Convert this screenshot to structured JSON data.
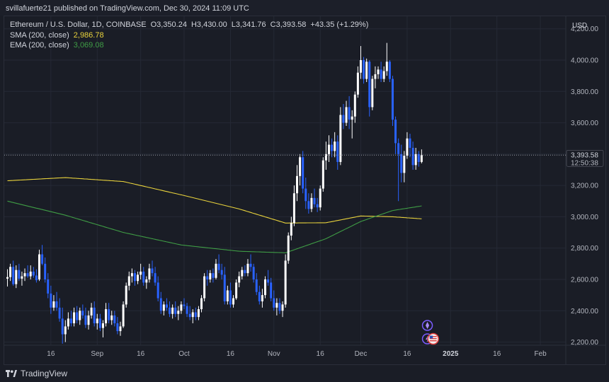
{
  "publisher": "svillafuerte21 published on TradingView.com, Dec 30, 2024 11:09 UTC",
  "legend": {
    "symbol": "Ethereum / U.S. Dollar, 1D, COINBASE",
    "open": "O3,350.24",
    "high": "H3,430.00",
    "low": "L3,341.76",
    "close": "C3,393.58",
    "change": "+43.35 (+1.29%)",
    "sma_label": "SMA (200, close)",
    "sma_value": "2,986.78",
    "ema_label": "EMA (200, close)",
    "ema_value": "3,069.08"
  },
  "price_axis": {
    "currency": "USD"
  },
  "last_price_tag": {
    "price": "3,393.58",
    "countdown": "12:50:38"
  },
  "footer": {
    "brand": "TradingView"
  },
  "colors": {
    "background": "#1a1d26",
    "grid": "#252935",
    "up_candle": "#ffffff",
    "down_candle": "#2962ff",
    "sma": "#e8d23c",
    "ema": "#3f9c45",
    "text": "#d1d4dc"
  },
  "icons": [
    "rocket-event-icon",
    "lightning-event-icon",
    "us-flag-event-icon",
    "tradingview-logo-icon"
  ],
  "chart_data": {
    "type": "candlestick",
    "title": "Ethereum / U.S. Dollar, 1D, COINBASE",
    "ylabel": "USD",
    "ylim": [
      2180,
      4280
    ],
    "yticks": [
      2200,
      2400,
      2600,
      2800,
      3000,
      3200,
      3400,
      3600,
      3800,
      4000,
      4200
    ],
    "ytick_labels": [
      "2,200.00",
      "2,400.00",
      "2,600.00",
      "2,800.00",
      "3,000.00",
      "3,200.00",
      "3,400.00",
      "3,600.00",
      "3,800.00",
      "4,000.00",
      "4,200.00"
    ],
    "xtick_labels": [
      "16",
      "Sep",
      "16",
      "Oct",
      "16",
      "Nov",
      "16",
      "Dec",
      "16",
      "2025",
      "16",
      "Feb"
    ],
    "xtick_days": [
      15,
      31,
      46,
      61,
      77,
      92,
      108,
      122,
      138,
      153,
      169,
      184
    ],
    "grid": true,
    "candles": [
      {
        "d": 0,
        "o": 2605,
        "h": 2665,
        "l": 2555,
        "c": 2615
      },
      {
        "d": 1,
        "o": 2615,
        "h": 2700,
        "l": 2590,
        "c": 2680
      },
      {
        "d": 2,
        "o": 2680,
        "h": 2720,
        "l": 2560,
        "c": 2570
      },
      {
        "d": 3,
        "o": 2570,
        "h": 2690,
        "l": 2545,
        "c": 2660
      },
      {
        "d": 4,
        "o": 2660,
        "h": 2700,
        "l": 2590,
        "c": 2605
      },
      {
        "d": 5,
        "o": 2605,
        "h": 2650,
        "l": 2560,
        "c": 2620
      },
      {
        "d": 6,
        "o": 2620,
        "h": 2670,
        "l": 2590,
        "c": 2640
      },
      {
        "d": 7,
        "o": 2640,
        "h": 2690,
        "l": 2610,
        "c": 2620
      },
      {
        "d": 8,
        "o": 2620,
        "h": 2690,
        "l": 2600,
        "c": 2650
      },
      {
        "d": 9,
        "o": 2650,
        "h": 2680,
        "l": 2610,
        "c": 2625
      },
      {
        "d": 10,
        "o": 2625,
        "h": 2665,
        "l": 2580,
        "c": 2595
      },
      {
        "d": 11,
        "o": 2600,
        "h": 2790,
        "l": 2590,
        "c": 2760
      },
      {
        "d": 12,
        "o": 2760,
        "h": 2820,
        "l": 2690,
        "c": 2700
      },
      {
        "d": 13,
        "o": 2700,
        "h": 2740,
        "l": 2580,
        "c": 2600
      },
      {
        "d": 14,
        "o": 2600,
        "h": 2640,
        "l": 2480,
        "c": 2510
      },
      {
        "d": 15,
        "o": 2510,
        "h": 2560,
        "l": 2380,
        "c": 2420
      },
      {
        "d": 16,
        "o": 2420,
        "h": 2500,
        "l": 2400,
        "c": 2460
      },
      {
        "d": 17,
        "o": 2460,
        "h": 2520,
        "l": 2400,
        "c": 2420
      },
      {
        "d": 18,
        "o": 2420,
        "h": 2480,
        "l": 2330,
        "c": 2350
      },
      {
        "d": 19,
        "o": 2350,
        "h": 2420,
        "l": 2190,
        "c": 2250
      },
      {
        "d": 20,
        "o": 2250,
        "h": 2340,
        "l": 2200,
        "c": 2300
      },
      {
        "d": 21,
        "o": 2300,
        "h": 2390,
        "l": 2280,
        "c": 2350
      },
      {
        "d": 22,
        "o": 2350,
        "h": 2400,
        "l": 2300,
        "c": 2320
      },
      {
        "d": 23,
        "o": 2320,
        "h": 2420,
        "l": 2300,
        "c": 2390
      },
      {
        "d": 24,
        "o": 2390,
        "h": 2430,
        "l": 2320,
        "c": 2340
      },
      {
        "d": 25,
        "o": 2340,
        "h": 2420,
        "l": 2310,
        "c": 2400
      },
      {
        "d": 26,
        "o": 2400,
        "h": 2440,
        "l": 2350,
        "c": 2370
      },
      {
        "d": 27,
        "o": 2370,
        "h": 2420,
        "l": 2290,
        "c": 2310
      },
      {
        "d": 28,
        "o": 2310,
        "h": 2400,
        "l": 2280,
        "c": 2370
      },
      {
        "d": 29,
        "o": 2370,
        "h": 2450,
        "l": 2350,
        "c": 2420
      },
      {
        "d": 30,
        "o": 2420,
        "h": 2460,
        "l": 2300,
        "c": 2320
      },
      {
        "d": 31,
        "o": 2320,
        "h": 2380,
        "l": 2280,
        "c": 2350
      },
      {
        "d": 32,
        "o": 2350,
        "h": 2380,
        "l": 2270,
        "c": 2290
      },
      {
        "d": 33,
        "o": 2290,
        "h": 2340,
        "l": 2230,
        "c": 2320
      },
      {
        "d": 34,
        "o": 2320,
        "h": 2450,
        "l": 2300,
        "c": 2410
      },
      {
        "d": 35,
        "o": 2410,
        "h": 2450,
        "l": 2320,
        "c": 2340
      },
      {
        "d": 36,
        "o": 2340,
        "h": 2400,
        "l": 2310,
        "c": 2370
      },
      {
        "d": 37,
        "o": 2370,
        "h": 2400,
        "l": 2300,
        "c": 2320
      },
      {
        "d": 38,
        "o": 2320,
        "h": 2360,
        "l": 2250,
        "c": 2270
      },
      {
        "d": 39,
        "o": 2270,
        "h": 2330,
        "l": 2240,
        "c": 2300
      },
      {
        "d": 40,
        "o": 2300,
        "h": 2460,
        "l": 2290,
        "c": 2440
      },
      {
        "d": 41,
        "o": 2440,
        "h": 2580,
        "l": 2420,
        "c": 2560
      },
      {
        "d": 42,
        "o": 2560,
        "h": 2650,
        "l": 2530,
        "c": 2620
      },
      {
        "d": 43,
        "o": 2620,
        "h": 2670,
        "l": 2580,
        "c": 2640
      },
      {
        "d": 44,
        "o": 2640,
        "h": 2660,
        "l": 2560,
        "c": 2590
      },
      {
        "d": 45,
        "o": 2590,
        "h": 2650,
        "l": 2570,
        "c": 2630
      },
      {
        "d": 46,
        "o": 2630,
        "h": 2700,
        "l": 2600,
        "c": 2650
      },
      {
        "d": 47,
        "o": 2650,
        "h": 2680,
        "l": 2560,
        "c": 2580
      },
      {
        "d": 48,
        "o": 2580,
        "h": 2620,
        "l": 2540,
        "c": 2600
      },
      {
        "d": 49,
        "o": 2600,
        "h": 2700,
        "l": 2580,
        "c": 2670
      },
      {
        "d": 50,
        "o": 2670,
        "h": 2720,
        "l": 2620,
        "c": 2640
      },
      {
        "d": 51,
        "o": 2640,
        "h": 2680,
        "l": 2560,
        "c": 2580
      },
      {
        "d": 52,
        "o": 2580,
        "h": 2620,
        "l": 2460,
        "c": 2480
      },
      {
        "d": 53,
        "o": 2480,
        "h": 2520,
        "l": 2380,
        "c": 2400
      },
      {
        "d": 54,
        "o": 2400,
        "h": 2460,
        "l": 2370,
        "c": 2440
      },
      {
        "d": 55,
        "o": 2440,
        "h": 2480,
        "l": 2400,
        "c": 2420
      },
      {
        "d": 56,
        "o": 2420,
        "h": 2460,
        "l": 2360,
        "c": 2380
      },
      {
        "d": 57,
        "o": 2380,
        "h": 2440,
        "l": 2350,
        "c": 2420
      },
      {
        "d": 58,
        "o": 2420,
        "h": 2460,
        "l": 2360,
        "c": 2380
      },
      {
        "d": 59,
        "o": 2380,
        "h": 2430,
        "l": 2340,
        "c": 2400
      },
      {
        "d": 60,
        "o": 2400,
        "h": 2460,
        "l": 2380,
        "c": 2440
      },
      {
        "d": 61,
        "o": 2440,
        "h": 2480,
        "l": 2410,
        "c": 2430
      },
      {
        "d": 62,
        "o": 2430,
        "h": 2450,
        "l": 2360,
        "c": 2380
      },
      {
        "d": 63,
        "o": 2380,
        "h": 2430,
        "l": 2340,
        "c": 2360
      },
      {
        "d": 64,
        "o": 2360,
        "h": 2410,
        "l": 2320,
        "c": 2390
      },
      {
        "d": 65,
        "o": 2390,
        "h": 2420,
        "l": 2340,
        "c": 2360
      },
      {
        "d": 66,
        "o": 2360,
        "h": 2430,
        "l": 2340,
        "c": 2410
      },
      {
        "d": 67,
        "o": 2410,
        "h": 2500,
        "l": 2390,
        "c": 2480
      },
      {
        "d": 68,
        "o": 2480,
        "h": 2640,
        "l": 2460,
        "c": 2620
      },
      {
        "d": 69,
        "o": 2620,
        "h": 2660,
        "l": 2560,
        "c": 2600
      },
      {
        "d": 70,
        "o": 2600,
        "h": 2660,
        "l": 2580,
        "c": 2640
      },
      {
        "d": 71,
        "o": 2640,
        "h": 2670,
        "l": 2580,
        "c": 2610
      },
      {
        "d": 72,
        "o": 2610,
        "h": 2730,
        "l": 2600,
        "c": 2700
      },
      {
        "d": 73,
        "o": 2700,
        "h": 2760,
        "l": 2640,
        "c": 2660
      },
      {
        "d": 74,
        "o": 2660,
        "h": 2700,
        "l": 2600,
        "c": 2630
      },
      {
        "d": 75,
        "o": 2630,
        "h": 2680,
        "l": 2440,
        "c": 2460
      },
      {
        "d": 76,
        "o": 2460,
        "h": 2560,
        "l": 2440,
        "c": 2530
      },
      {
        "d": 77,
        "o": 2530,
        "h": 2580,
        "l": 2420,
        "c": 2440
      },
      {
        "d": 78,
        "o": 2440,
        "h": 2500,
        "l": 2420,
        "c": 2480
      },
      {
        "d": 79,
        "o": 2480,
        "h": 2600,
        "l": 2470,
        "c": 2580
      },
      {
        "d": 80,
        "o": 2580,
        "h": 2650,
        "l": 2550,
        "c": 2620
      },
      {
        "d": 81,
        "o": 2620,
        "h": 2680,
        "l": 2600,
        "c": 2660
      },
      {
        "d": 82,
        "o": 2660,
        "h": 2690,
        "l": 2620,
        "c": 2640
      },
      {
        "d": 83,
        "o": 2640,
        "h": 2730,
        "l": 2620,
        "c": 2700
      },
      {
        "d": 84,
        "o": 2700,
        "h": 2760,
        "l": 2650,
        "c": 2680
      },
      {
        "d": 85,
        "o": 2680,
        "h": 2700,
        "l": 2580,
        "c": 2600
      },
      {
        "d": 86,
        "o": 2600,
        "h": 2640,
        "l": 2500,
        "c": 2520
      },
      {
        "d": 87,
        "o": 2520,
        "h": 2560,
        "l": 2440,
        "c": 2460
      },
      {
        "d": 88,
        "o": 2460,
        "h": 2540,
        "l": 2420,
        "c": 2500
      },
      {
        "d": 89,
        "o": 2500,
        "h": 2620,
        "l": 2480,
        "c": 2600
      },
      {
        "d": 90,
        "o": 2600,
        "h": 2660,
        "l": 2560,
        "c": 2580
      },
      {
        "d": 91,
        "o": 2580,
        "h": 2610,
        "l": 2460,
        "c": 2480
      },
      {
        "d": 92,
        "o": 2480,
        "h": 2530,
        "l": 2400,
        "c": 2420
      },
      {
        "d": 93,
        "o": 2420,
        "h": 2480,
        "l": 2370,
        "c": 2450
      },
      {
        "d": 94,
        "o": 2450,
        "h": 2480,
        "l": 2380,
        "c": 2400
      },
      {
        "d": 95,
        "o": 2400,
        "h": 2460,
        "l": 2360,
        "c": 2440
      },
      {
        "d": 96,
        "o": 2440,
        "h": 2760,
        "l": 2420,
        "c": 2720
      },
      {
        "d": 97,
        "o": 2720,
        "h": 2900,
        "l": 2700,
        "c": 2880
      },
      {
        "d": 98,
        "o": 2880,
        "h": 3000,
        "l": 2850,
        "c": 2960
      },
      {
        "d": 99,
        "o": 2960,
        "h": 3200,
        "l": 2940,
        "c": 3150
      },
      {
        "d": 100,
        "o": 3150,
        "h": 3330,
        "l": 3100,
        "c": 3260
      },
      {
        "d": 101,
        "o": 3260,
        "h": 3400,
        "l": 3200,
        "c": 3380
      },
      {
        "d": 102,
        "o": 3380,
        "h": 3420,
        "l": 3150,
        "c": 3180
      },
      {
        "d": 103,
        "o": 3180,
        "h": 3250,
        "l": 3050,
        "c": 3100
      },
      {
        "d": 104,
        "o": 3100,
        "h": 3150,
        "l": 3020,
        "c": 3050
      },
      {
        "d": 105,
        "o": 3050,
        "h": 3150,
        "l": 3030,
        "c": 3120
      },
      {
        "d": 106,
        "o": 3120,
        "h": 3180,
        "l": 3060,
        "c": 3080
      },
      {
        "d": 107,
        "o": 3080,
        "h": 3120,
        "l": 3030,
        "c": 3060
      },
      {
        "d": 108,
        "o": 3060,
        "h": 3200,
        "l": 3040,
        "c": 3180
      },
      {
        "d": 109,
        "o": 3180,
        "h": 3380,
        "l": 3160,
        "c": 3360
      },
      {
        "d": 110,
        "o": 3360,
        "h": 3480,
        "l": 3300,
        "c": 3400
      },
      {
        "d": 111,
        "o": 3400,
        "h": 3520,
        "l": 3350,
        "c": 3460
      },
      {
        "d": 112,
        "o": 3460,
        "h": 3500,
        "l": 3380,
        "c": 3420
      },
      {
        "d": 113,
        "o": 3420,
        "h": 3540,
        "l": 3380,
        "c": 3480
      },
      {
        "d": 114,
        "o": 3480,
        "h": 3520,
        "l": 3300,
        "c": 3350
      },
      {
        "d": 115,
        "o": 3350,
        "h": 3700,
        "l": 3330,
        "c": 3650
      },
      {
        "d": 116,
        "o": 3650,
        "h": 3720,
        "l": 3560,
        "c": 3600
      },
      {
        "d": 117,
        "o": 3600,
        "h": 3740,
        "l": 3580,
        "c": 3700
      },
      {
        "d": 118,
        "o": 3700,
        "h": 3770,
        "l": 3560,
        "c": 3620
      },
      {
        "d": 119,
        "o": 3620,
        "h": 3680,
        "l": 3500,
        "c": 3640
      },
      {
        "d": 120,
        "o": 3640,
        "h": 3800,
        "l": 3600,
        "c": 3780
      },
      {
        "d": 121,
        "o": 3780,
        "h": 3960,
        "l": 3760,
        "c": 3920
      },
      {
        "d": 122,
        "o": 3920,
        "h": 4090,
        "l": 3880,
        "c": 4000
      },
      {
        "d": 123,
        "o": 4000,
        "h": 4020,
        "l": 3850,
        "c": 3880
      },
      {
        "d": 124,
        "o": 3880,
        "h": 4010,
        "l": 3860,
        "c": 3990
      },
      {
        "d": 125,
        "o": 3990,
        "h": 4000,
        "l": 3640,
        "c": 3700
      },
      {
        "d": 126,
        "o": 3700,
        "h": 3900,
        "l": 3680,
        "c": 3880
      },
      {
        "d": 127,
        "o": 3880,
        "h": 3960,
        "l": 3820,
        "c": 3910
      },
      {
        "d": 128,
        "o": 3910,
        "h": 3960,
        "l": 3880,
        "c": 3940
      },
      {
        "d": 129,
        "o": 3940,
        "h": 3990,
        "l": 3860,
        "c": 3880
      },
      {
        "d": 130,
        "o": 3880,
        "h": 3960,
        "l": 3860,
        "c": 3930
      },
      {
        "d": 131,
        "o": 3930,
        "h": 4110,
        "l": 3900,
        "c": 3990
      },
      {
        "d": 132,
        "o": 3990,
        "h": 4000,
        "l": 3860,
        "c": 3880
      },
      {
        "d": 133,
        "o": 3880,
        "h": 3900,
        "l": 3580,
        "c": 3620
      },
      {
        "d": 134,
        "o": 3620,
        "h": 3640,
        "l": 3400,
        "c": 3470
      },
      {
        "d": 135,
        "o": 3470,
        "h": 3500,
        "l": 3100,
        "c": 3400
      },
      {
        "d": 136,
        "o": 3400,
        "h": 3460,
        "l": 3220,
        "c": 3280
      },
      {
        "d": 137,
        "o": 3280,
        "h": 3420,
        "l": 3220,
        "c": 3390
      },
      {
        "d": 138,
        "o": 3390,
        "h": 3540,
        "l": 3370,
        "c": 3500
      },
      {
        "d": 139,
        "o": 3500,
        "h": 3530,
        "l": 3380,
        "c": 3440
      },
      {
        "d": 140,
        "o": 3440,
        "h": 3480,
        "l": 3300,
        "c": 3330
      },
      {
        "d": 141,
        "o": 3330,
        "h": 3440,
        "l": 3300,
        "c": 3400
      },
      {
        "d": 142,
        "o": 3400,
        "h": 3420,
        "l": 3320,
        "c": 3350
      },
      {
        "d": 143,
        "o": 3350,
        "h": 3430,
        "l": 3341,
        "c": 3393
      }
    ],
    "series": [
      {
        "name": "SMA (200, close)",
        "x": [
          0,
          20,
          40,
          60,
          80,
          96,
          110,
          122,
          133,
          143
        ],
        "values": [
          3230,
          3250,
          3225,
          3140,
          3050,
          2960,
          2962,
          3005,
          3000,
          2987
        ]
      },
      {
        "name": "EMA (200, close)",
        "x": [
          0,
          20,
          40,
          60,
          80,
          96,
          110,
          122,
          133,
          143
        ],
        "values": [
          3100,
          3010,
          2900,
          2820,
          2780,
          2770,
          2860,
          2970,
          3040,
          3069
        ]
      }
    ],
    "last_price": 3393.58,
    "events": [
      {
        "d": 145,
        "icon": "rocket-event-icon"
      },
      {
        "d": 145,
        "icon": "lightning-event-icon"
      },
      {
        "d": 147,
        "icon": "us-flag-event-icon"
      }
    ]
  }
}
